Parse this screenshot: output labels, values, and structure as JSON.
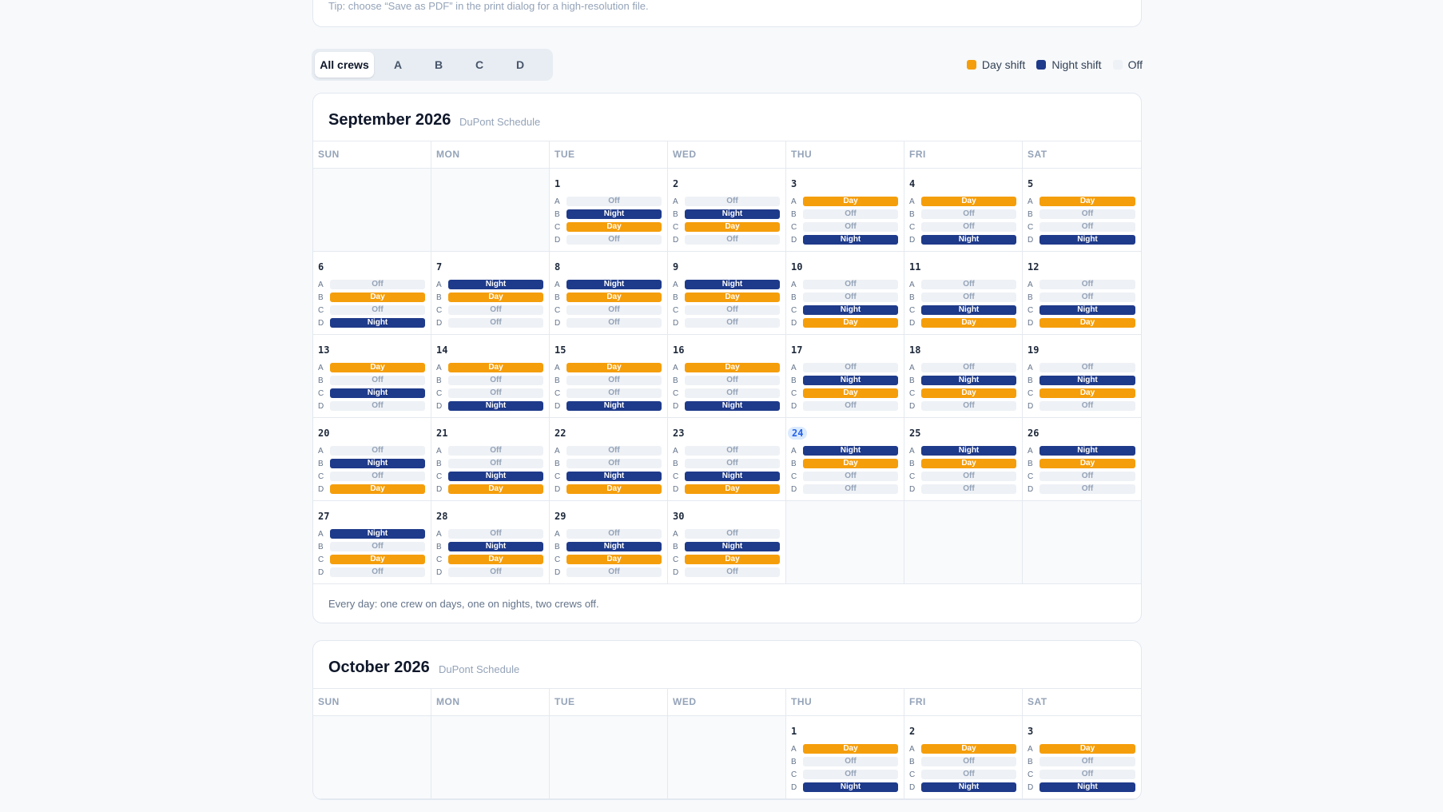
{
  "tip": "Tip: choose “Save as PDF” in the print dialog for a high-resolution file.",
  "filters": [
    {
      "label": "All crews",
      "active": true
    },
    {
      "label": "A",
      "active": false
    },
    {
      "label": "B",
      "active": false
    },
    {
      "label": "C",
      "active": false
    },
    {
      "label": "D",
      "active": false
    }
  ],
  "legend": [
    {
      "label": "Day shift",
      "color": "#f59e0b"
    },
    {
      "label": "Night shift",
      "color": "#1e3a8a"
    },
    {
      "label": "Off",
      "color": "#eef1f5"
    }
  ],
  "weekdays": [
    "SUN",
    "MON",
    "TUE",
    "WED",
    "THU",
    "FRI",
    "SAT"
  ],
  "crews": [
    "A",
    "B",
    "C",
    "D"
  ],
  "shift_labels": {
    "D": "Day",
    "N": "Night",
    "O": "Off"
  },
  "months": [
    {
      "title": "September 2026",
      "subtitle": "DuPont Schedule",
      "start_weekday": 2,
      "today": 24,
      "footer": "Every day: one crew on days, one on nights, two crews off.",
      "days": [
        {
          "n": 1,
          "s": "ONDO"
        },
        {
          "n": 2,
          "s": "ONDO"
        },
        {
          "n": 3,
          "s": "DOON"
        },
        {
          "n": 4,
          "s": "DOON"
        },
        {
          "n": 5,
          "s": "DOON"
        },
        {
          "n": 6,
          "s": "ODON"
        },
        {
          "n": 7,
          "s": "NDOO"
        },
        {
          "n": 8,
          "s": "NDOO"
        },
        {
          "n": 9,
          "s": "NDOO"
        },
        {
          "n": 10,
          "s": "OOND"
        },
        {
          "n": 11,
          "s": "OOND"
        },
        {
          "n": 12,
          "s": "OOND"
        },
        {
          "n": 13,
          "s": "DONO"
        },
        {
          "n": 14,
          "s": "DOON"
        },
        {
          "n": 15,
          "s": "DOON"
        },
        {
          "n": 16,
          "s": "DOON"
        },
        {
          "n": 17,
          "s": "ONDO"
        },
        {
          "n": 18,
          "s": "ONDO"
        },
        {
          "n": 19,
          "s": "ONDO"
        },
        {
          "n": 20,
          "s": "ONOD"
        },
        {
          "n": 21,
          "s": "OOND"
        },
        {
          "n": 22,
          "s": "OOND"
        },
        {
          "n": 23,
          "s": "OOND"
        },
        {
          "n": 24,
          "s": "NDOO"
        },
        {
          "n": 25,
          "s": "NDOO"
        },
        {
          "n": 26,
          "s": "NDOO"
        },
        {
          "n": 27,
          "s": "NODO"
        },
        {
          "n": 28,
          "s": "ONDO"
        },
        {
          "n": 29,
          "s": "ONDO"
        },
        {
          "n": 30,
          "s": "ONDO"
        }
      ]
    },
    {
      "title": "October 2026",
      "subtitle": "DuPont Schedule",
      "start_weekday": 4,
      "today": null,
      "footer": "",
      "days": [
        {
          "n": 1,
          "s": "DOON"
        },
        {
          "n": 2,
          "s": "DOON"
        },
        {
          "n": 3,
          "s": "DOON"
        }
      ]
    }
  ]
}
